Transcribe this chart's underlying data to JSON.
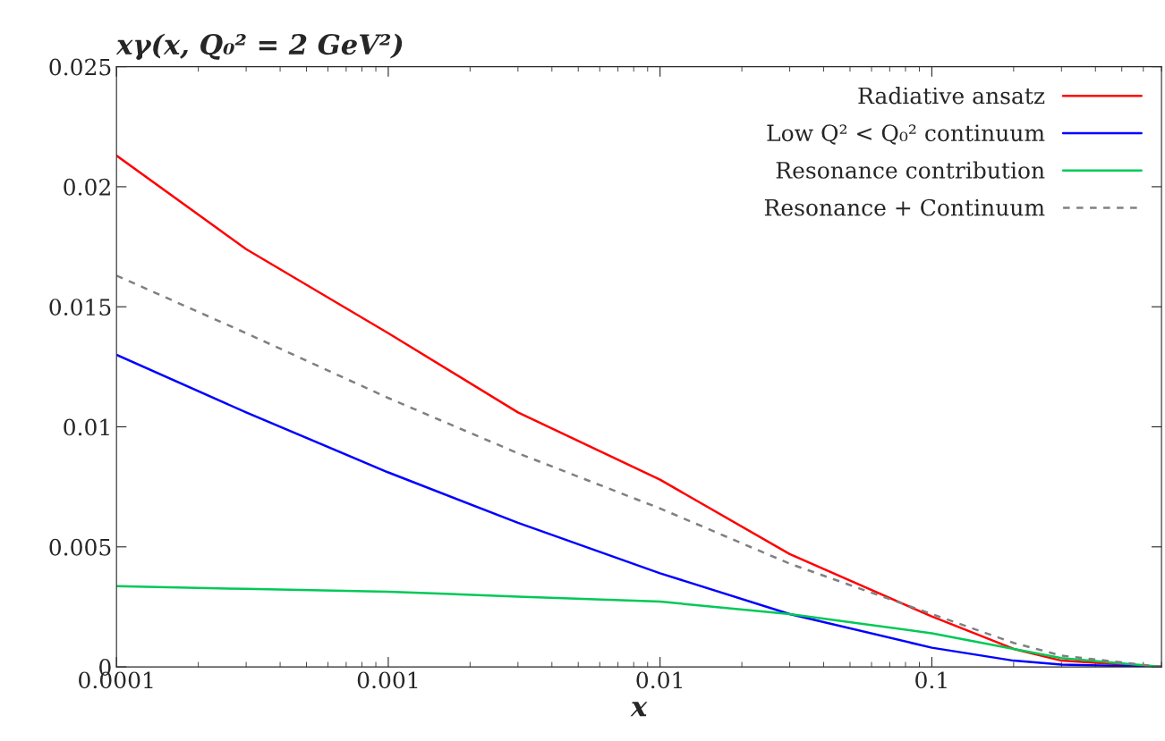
{
  "chart_data": {
    "type": "line",
    "title": "xγ(x, Q₀² = 2 GeV²)",
    "xlabel": "x",
    "log": "x",
    "xlim": [
      0.0001,
      0.7
    ],
    "xticks": [
      0.0001,
      0.001,
      0.01,
      0.1
    ],
    "ylim": [
      0,
      0.025
    ],
    "yticks": [
      0,
      0.005,
      0.01,
      0.015,
      0.02,
      0.025
    ],
    "grid": false,
    "legend": "top right",
    "marker": "none",
    "x": [
      0.0001,
      0.0003,
      0.001,
      0.003,
      0.01,
      0.03,
      0.1,
      0.2,
      0.3,
      0.7
    ],
    "series": [
      {
        "name": "Radiative ansatz",
        "color": "#ff0000",
        "line_style": "solid",
        "values": [
          0.0213,
          0.0174,
          0.0139,
          0.0106,
          0.0078,
          0.0047,
          0.0021,
          0.00075,
          0.00026,
          0
        ]
      },
      {
        "name": "Low Q² < Q₀² continuum",
        "color": "#0000ff",
        "line_style": "solid",
        "values": [
          0.013,
          0.0106,
          0.0081,
          0.006,
          0.0039,
          0.0022,
          0.0008,
          0.00026,
          0.0001,
          0
        ]
      },
      {
        "name": "Resonance contribution",
        "color": "#00c957",
        "line_style": "solid",
        "values": [
          0.00336,
          0.00325,
          0.00313,
          0.00293,
          0.00272,
          0.0022,
          0.0014,
          0.00075,
          0.00037,
          0
        ]
      },
      {
        "name": "Resonance + Continuum",
        "color": "#808080",
        "line_style": "dashed",
        "values": [
          0.0163,
          0.0139,
          0.0112,
          0.0089,
          0.0066,
          0.0043,
          0.0022,
          0.001,
          0.00047,
          0
        ]
      }
    ]
  }
}
